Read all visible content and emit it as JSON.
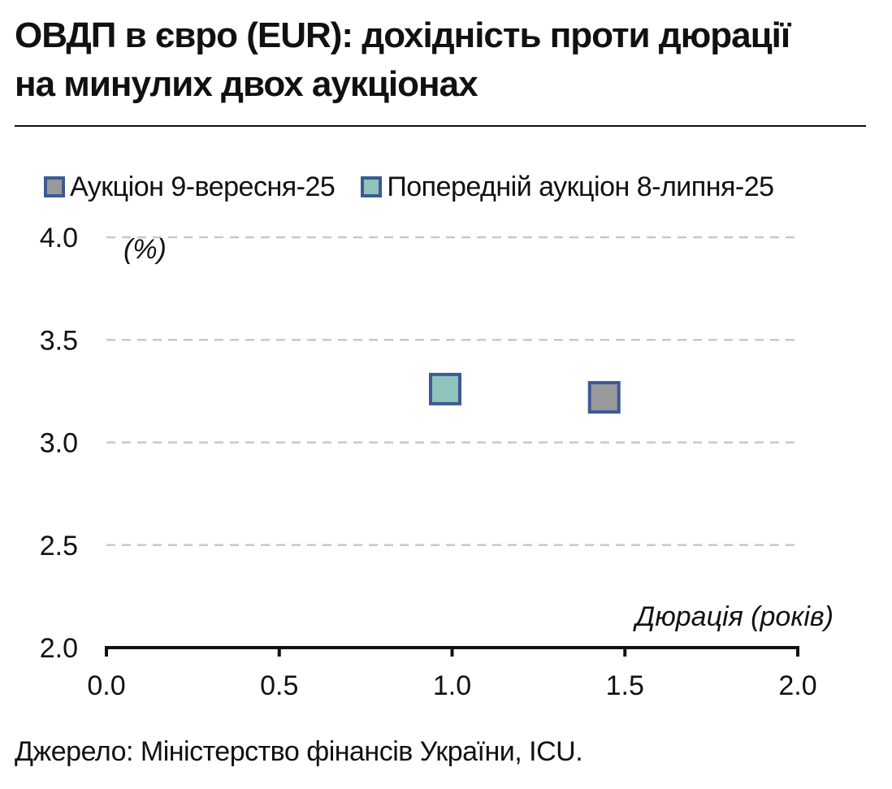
{
  "header": {
    "title_line1": "ОВДП в євро (EUR): дохідність проти дюрації",
    "title_line2": "на минулих двох аукціонах"
  },
  "chart_data": {
    "type": "scatter",
    "series": [
      {
        "name": "Аукціон 9-вересня-25",
        "color": "#999999",
        "border": "#3d5a94",
        "points": [
          {
            "x": 1.44,
            "y": 3.22
          }
        ]
      },
      {
        "name": "Попередній аукціон 8-липня-25",
        "color": "#8fc4bc",
        "border": "#3d5a94",
        "points": [
          {
            "x": 0.98,
            "y": 3.26
          }
        ]
      }
    ],
    "xlabel": "Дюрація (років)",
    "ylabel": "(%)",
    "xlim": [
      0.0,
      2.0
    ],
    "ylim": [
      2.0,
      4.0
    ],
    "xticks": [
      "0.0",
      "0.5",
      "1.0",
      "1.5",
      "2.0"
    ],
    "yticks": [
      "2.0",
      "2.5",
      "3.0",
      "3.5",
      "4.0"
    ],
    "grid": "horizontal-dashed",
    "legend_position": "top-left"
  },
  "footer": {
    "source": "Джерело: Міністерство фінансів України, ICU."
  }
}
